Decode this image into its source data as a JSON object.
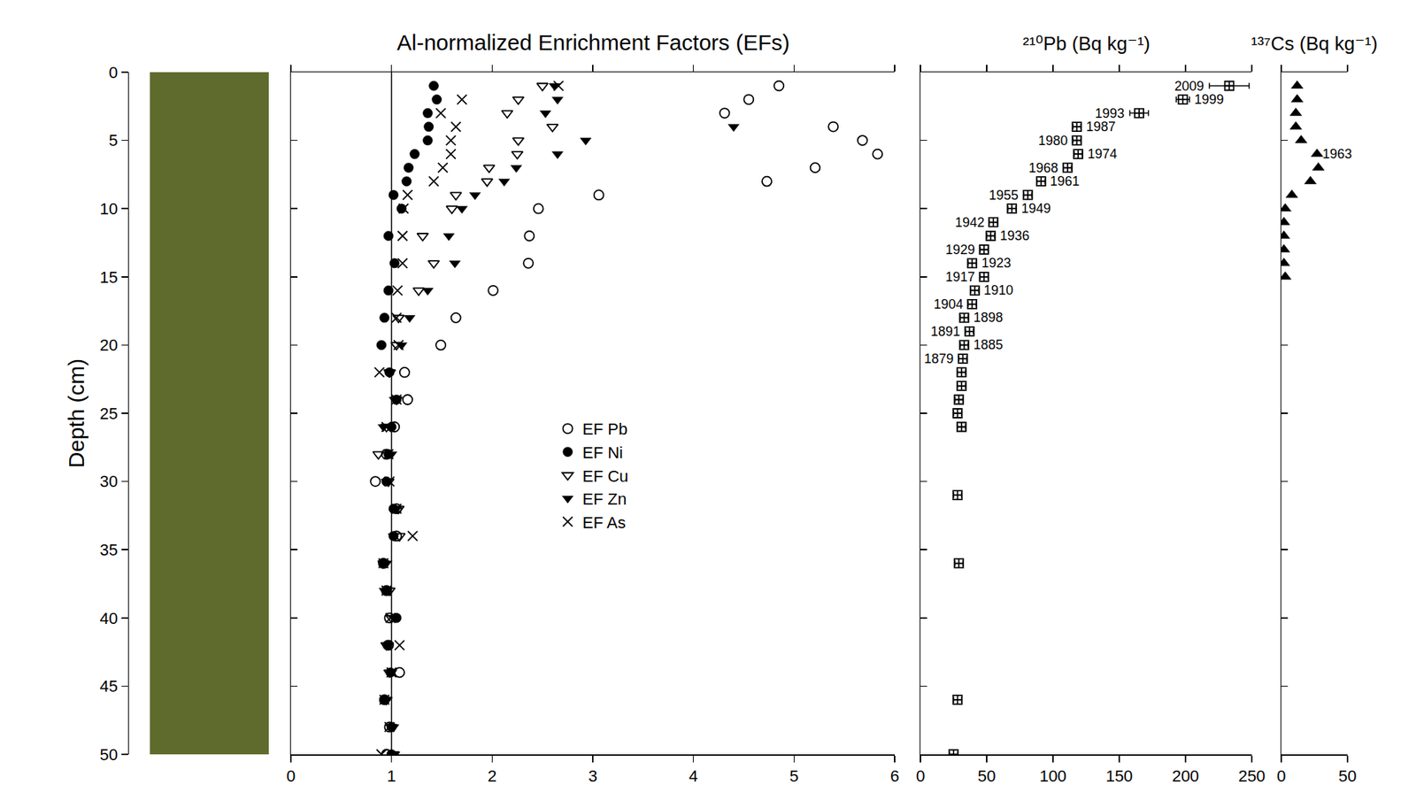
{
  "chart_data": [
    {
      "type": "scatter",
      "title": "Al-normalized Enrichment Factors (EFs)",
      "y_label": "Depth (cm)",
      "xlim": [
        0,
        6
      ],
      "xticks": [
        0,
        1,
        2,
        3,
        4,
        5,
        6
      ],
      "ylim": [
        0,
        50
      ],
      "yticks": [
        0,
        5,
        10,
        15,
        20,
        25,
        30,
        35,
        40,
        45,
        50
      ],
      "reference_x": 1,
      "legend": "center",
      "series": [
        {
          "name": "EF Pb",
          "color": "#000000",
          "marker": "circle-open",
          "x": [
            4.85,
            4.55,
            4.31,
            5.39,
            5.68,
            5.83,
            5.21,
            4.73,
            3.06,
            2.46,
            2.37,
            2.36,
            2.01,
            1.64,
            1.49,
            1.13,
            1.16,
            1.03,
            0.95,
            0.84,
            1.05,
            1.05,
            0.92,
            0.95,
            0.98,
            0.97,
            1.08,
            0.93,
            0.98,
            0.95
          ],
          "y": [
            1,
            2,
            3,
            4,
            5,
            6,
            7,
            8,
            9,
            10,
            12,
            14,
            16,
            18,
            20,
            22,
            24,
            26,
            28,
            30,
            32,
            34,
            36,
            38,
            40,
            42,
            44,
            46,
            48,
            50
          ]
        },
        {
          "name": "EF Ni",
          "color": "#000000",
          "marker": "circle",
          "x": [
            1.42,
            1.45,
            1.36,
            1.37,
            1.36,
            1.23,
            1.17,
            1.15,
            1.02,
            1.1,
            0.97,
            1.03,
            0.97,
            0.93,
            0.9,
            0.98,
            1.05,
            1.0,
            0.97,
            0.95,
            1.02,
            1.02,
            0.92,
            0.95,
            1.05,
            0.96,
            0.99,
            0.93,
            1.0,
            1.0
          ],
          "y": [
            1,
            2,
            3,
            4,
            5,
            6,
            7,
            8,
            9,
            10,
            12,
            14,
            16,
            18,
            20,
            22,
            24,
            26,
            28,
            30,
            32,
            34,
            36,
            38,
            40,
            42,
            44,
            46,
            48,
            50
          ]
        },
        {
          "name": "EF Cu",
          "color": "#000000",
          "marker": "triangle-down-open",
          "x": [
            2.5,
            2.26,
            2.15,
            2.6,
            2.26,
            2.25,
            1.97,
            1.95,
            1.64,
            1.6,
            1.31,
            1.42,
            1.27,
            1.07,
            1.05,
            0.98,
            1.05,
            0.95,
            0.87,
            0.97,
            1.07,
            1.08,
            0.92,
            0.98,
            1.0,
            0.95,
            0.98,
            0.95,
            1.0,
            1.02
          ],
          "y": [
            1,
            2,
            3,
            4,
            5,
            6,
            7,
            8,
            9,
            10,
            12,
            14,
            16,
            18,
            20,
            22,
            24,
            26,
            28,
            30,
            32,
            34,
            36,
            38,
            40,
            42,
            44,
            46,
            48,
            50
          ]
        },
        {
          "name": "EF Zn",
          "color": "#000000",
          "marker": "triangle-down",
          "x": [
            2.62,
            2.65,
            2.53,
            4.4,
            2.93,
            2.65,
            2.24,
            2.12,
            1.83,
            1.7,
            1.57,
            1.63,
            1.36,
            1.18,
            1.1,
            0.99,
            1.03,
            0.92,
            1.0,
            0.95,
            1.05,
            1.02,
            0.95,
            0.93,
            1.03,
            0.97,
            1.0,
            0.95,
            1.02,
            1.03
          ],
          "y": [
            1,
            2,
            3,
            4,
            5,
            6,
            7,
            8,
            9,
            10,
            12,
            14,
            16,
            18,
            20,
            22,
            24,
            26,
            28,
            30,
            32,
            34,
            36,
            38,
            40,
            42,
            44,
            46,
            48,
            50
          ]
        },
        {
          "name": "EF As",
          "color": "#000000",
          "marker": "x-thin-open",
          "x": [
            2.66,
            1.7,
            1.49,
            1.64,
            1.59,
            1.59,
            1.51,
            1.42,
            1.16,
            1.12,
            1.11,
            1.11,
            1.06,
            1.05,
            1.07,
            0.88,
            1.05,
            0.95,
            0.97,
            0.98,
            1.05,
            1.21,
            0.92,
            0.95,
            0.99,
            1.08,
            1.0,
            0.93,
            0.98,
            0.9
          ],
          "y": [
            1,
            2,
            3,
            4,
            5,
            6,
            7,
            8,
            9,
            10,
            12,
            14,
            16,
            18,
            20,
            22,
            24,
            26,
            28,
            30,
            32,
            34,
            36,
            38,
            40,
            42,
            44,
            46,
            48,
            50
          ]
        }
      ]
    },
    {
      "type": "scatter",
      "title": "²¹⁰Pb (Bq kg⁻¹)",
      "xlim": [
        0,
        250
      ],
      "xticks": [
        0,
        50,
        100,
        150,
        200,
        250
      ],
      "ylim": [
        0,
        50
      ],
      "yticks": [
        0,
        5,
        10,
        15,
        20,
        25,
        30,
        35,
        40,
        45,
        50
      ],
      "tick_labels": "x",
      "series": [
        {
          "color": "#000000",
          "marker": "square-cross-open",
          "x": [
            233,
            198,
            165,
            118,
            118,
            119,
            111,
            91,
            81,
            69,
            55,
            53,
            48,
            39,
            48,
            41,
            39,
            33,
            37,
            33,
            32,
            31,
            31,
            29,
            28,
            31,
            28,
            29,
            28,
            25
          ],
          "errors": [
            15,
            5,
            7,
            3,
            3,
            3,
            3,
            3,
            3,
            3,
            3,
            3,
            3,
            3,
            3,
            3,
            3,
            3,
            3,
            3,
            3,
            3,
            3,
            3,
            3,
            3,
            3,
            3,
            3,
            3
          ],
          "y": [
            1,
            2,
            3,
            4,
            5,
            6,
            7,
            8,
            9,
            10,
            11,
            12,
            13,
            14,
            15,
            16,
            17,
            18,
            19,
            20,
            21,
            22,
            23,
            24,
            25,
            26,
            31,
            36,
            46,
            50
          ],
          "point_labels": [
            "2009",
            "1999",
            "1993",
            "1987",
            "1980",
            "1974",
            "1968",
            "1961",
            "1955",
            "1949",
            "1942",
            "1936",
            "1929",
            "1923",
            "1917",
            "1910",
            "1904",
            "1898",
            "1891",
            "1885",
            "1879",
            null,
            null,
            null,
            null,
            null,
            null,
            null,
            null,
            null
          ]
        }
      ]
    },
    {
      "type": "scatter",
      "title": "¹³⁷Cs (Bq kg⁻¹)",
      "xlim": [
        0,
        50
      ],
      "xticks": [
        0,
        50
      ],
      "ylim": [
        0,
        50
      ],
      "yticks": [
        0,
        5,
        10,
        15,
        20,
        25,
        30,
        35,
        40,
        45,
        50
      ],
      "tick_labels": "x",
      "series": [
        {
          "color": "#000000",
          "marker": "triangle-up",
          "x": [
            12,
            12,
            11,
            11,
            15,
            27,
            28,
            22,
            8,
            3,
            2,
            2,
            2,
            2,
            3
          ],
          "y": [
            1,
            2,
            3,
            4,
            5,
            6,
            7,
            8,
            9,
            10,
            11,
            12,
            13,
            14,
            15
          ],
          "point_labels": [
            null,
            null,
            null,
            null,
            null,
            "1963",
            null,
            null,
            null,
            null,
            null,
            null,
            null,
            null,
            null
          ]
        }
      ]
    }
  ]
}
